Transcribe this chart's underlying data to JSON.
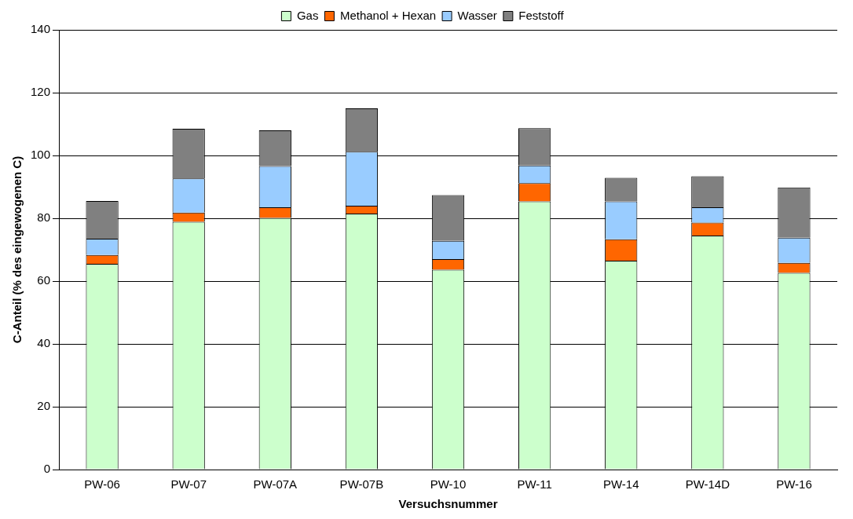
{
  "chart_data": {
    "type": "bar",
    "stacked": true,
    "xlabel": "Versuchsnummer",
    "ylabel": "C-Anteil (% des eingewogenen C)",
    "categories": [
      "PW-06",
      "PW-07",
      "PW-07A",
      "PW-07B",
      "PW-10",
      "PW-11",
      "PW-14",
      "PW-14D",
      "PW-16"
    ],
    "series": [
      {
        "name": "Gas",
        "color": "#ccffcc",
        "values": [
          65.5,
          78.9,
          80.1,
          81.5,
          63.6,
          85.4,
          66.5,
          74.5,
          62.6
        ]
      },
      {
        "name": "Methanol + Hexan",
        "color": "#ff6600",
        "values": [
          2.8,
          2.9,
          3.4,
          2.5,
          3.4,
          5.8,
          6.8,
          4.1,
          3.2
        ]
      },
      {
        "name": "Wasser",
        "color": "#99ccff",
        "values": [
          5.2,
          10.9,
          13.1,
          17.2,
          5.8,
          5.6,
          12.1,
          4.9,
          8
        ]
      },
      {
        "name": "Feststoff",
        "color": "#808080",
        "values": [
          12,
          15.8,
          11.4,
          13.8,
          14.6,
          11.9,
          7.5,
          9.9,
          16
        ]
      }
    ],
    "ylim": [
      0,
      140
    ],
    "yticks": [
      0,
      20,
      40,
      60,
      80,
      100,
      120,
      140
    ],
    "grid": "y",
    "legend": "top"
  }
}
